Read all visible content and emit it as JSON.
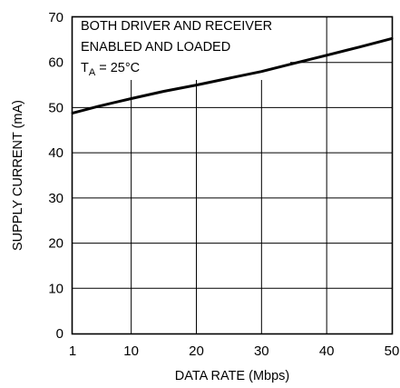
{
  "chart_data": {
    "type": "line",
    "xlabel": "DATA RATE (Mbps)",
    "ylabel": "SUPPLY CURRENT (mA)",
    "xlim": [
      1,
      50
    ],
    "ylim": [
      0,
      70
    ],
    "x_ticks": [
      1,
      10,
      20,
      30,
      40,
      50
    ],
    "y_ticks": [
      0,
      10,
      20,
      30,
      40,
      50,
      60,
      70
    ],
    "grid": true,
    "annotation": {
      "line1": "BOTH DRIVER AND RECEIVER",
      "line2": "ENABLED AND LOADED",
      "temp_var": "T",
      "temp_sub": "A",
      "temp_value": " = 25°C"
    },
    "series": [
      {
        "x": [
          1,
          5,
          10,
          15,
          20,
          25,
          30,
          35,
          40,
          45,
          50
        ],
        "y": [
          48.8,
          50.3,
          52.0,
          53.6,
          55.0,
          56.5,
          58.0,
          59.8,
          61.6,
          63.4,
          65.3
        ]
      }
    ]
  }
}
